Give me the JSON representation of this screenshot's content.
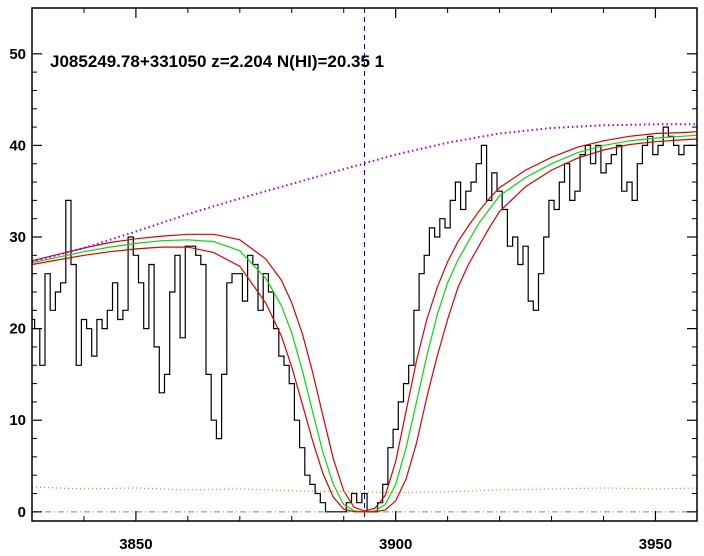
{
  "chart_data": {
    "type": "line",
    "title": "J085249.78+331050 z=2.204 N(HI)=20.35 1",
    "xlabel": "",
    "ylabel": "",
    "xlim": [
      3830,
      3958
    ],
    "ylim": [
      -1,
      55
    ],
    "x_ticks": [
      3850,
      3900,
      3950
    ],
    "y_ticks": [
      0,
      10,
      20,
      30,
      40,
      50
    ],
    "grid": false,
    "absorber_center": 3894,
    "colors": {
      "flux": "#000000",
      "model": "#00dd00",
      "model_bounds": "#dd0000",
      "continuum": "#9900ff",
      "error": "#ff7700",
      "center_line": "#0000cc",
      "zero_line": "#888888"
    },
    "series": [
      {
        "kind": "flux_histogram",
        "x": [
          3830,
          3831,
          3832,
          3833,
          3834,
          3835,
          3836,
          3837,
          3838,
          3839,
          3840,
          3841,
          3842,
          3843,
          3844,
          3845,
          3846,
          3847,
          3848,
          3849,
          3850,
          3851,
          3852,
          3853,
          3854,
          3855,
          3856,
          3857,
          3858,
          3859,
          3860,
          3861,
          3862,
          3863,
          3864,
          3865,
          3866,
          3867,
          3868,
          3869,
          3870,
          3871,
          3872,
          3873,
          3874,
          3875,
          3876,
          3877,
          3878,
          3879,
          3880,
          3881,
          3882,
          3883,
          3884,
          3885,
          3886,
          3887,
          3888,
          3889,
          3890,
          3891,
          3892,
          3893,
          3894,
          3895,
          3896,
          3897,
          3898,
          3899,
          3900,
          3901,
          3902,
          3903,
          3904,
          3905,
          3906,
          3907,
          3908,
          3909,
          3910,
          3911,
          3912,
          3913,
          3914,
          3915,
          3916,
          3917,
          3918,
          3919,
          3920,
          3921,
          3922,
          3923,
          3924,
          3925,
          3926,
          3927,
          3928,
          3929,
          3930,
          3931,
          3932,
          3933,
          3934,
          3935,
          3936,
          3937,
          3938,
          3939,
          3940,
          3941,
          3942,
          3943,
          3944,
          3945,
          3946,
          3947,
          3948,
          3949,
          3950,
          3951,
          3952,
          3953,
          3954,
          3955,
          3956,
          3957
        ],
        "y": [
          21,
          20,
          16,
          26,
          22,
          24,
          25,
          34,
          27,
          16,
          21,
          20,
          17,
          21,
          20,
          22,
          25,
          21,
          22,
          30,
          28,
          25,
          20,
          27,
          18,
          13,
          15,
          24,
          28,
          19,
          29,
          29,
          28,
          27,
          15,
          10,
          8,
          15,
          25,
          26,
          26,
          23,
          28,
          27,
          22,
          26,
          24,
          20,
          17,
          16,
          14,
          10,
          7,
          4,
          3,
          2,
          1,
          0,
          0,
          0,
          0,
          1,
          2,
          1,
          2,
          0,
          0,
          1,
          3,
          7,
          9,
          12,
          14,
          16,
          22,
          26,
          28,
          31,
          30,
          32,
          31,
          34,
          36,
          33,
          35,
          36,
          38,
          40,
          34,
          37,
          35,
          33,
          29,
          30,
          27,
          29,
          23,
          22,
          26,
          30,
          34,
          33,
          36,
          38,
          34,
          35,
          39,
          40,
          38,
          40,
          37,
          38,
          39,
          40,
          35,
          36,
          34,
          38,
          40,
          41,
          39,
          40,
          42,
          41,
          40,
          39,
          40,
          40
        ]
      },
      {
        "kind": "model",
        "name": "",
        "x": [
          3830,
          3835,
          3840,
          3845,
          3850,
          3855,
          3860,
          3865,
          3870,
          3875,
          3878,
          3880,
          3882,
          3884,
          3886,
          3888,
          3890,
          3892,
          3894,
          3896,
          3898,
          3900,
          3902,
          3904,
          3906,
          3908,
          3910,
          3912,
          3914,
          3916,
          3918,
          3920,
          3925,
          3930,
          3935,
          3940,
          3945,
          3950,
          3955,
          3958
        ],
        "y": [
          27.2,
          27.8,
          28.4,
          28.9,
          29.3,
          29.6,
          29.7,
          29.5,
          28.5,
          25.5,
          22.5,
          19.5,
          15.5,
          11,
          6.5,
          3,
          0.8,
          0.1,
          0,
          0.1,
          0.8,
          3,
          7,
          12,
          17,
          21.5,
          25,
          27.5,
          29.5,
          31.5,
          33,
          34.5,
          36.5,
          38,
          39.2,
          40,
          40.5,
          40.8,
          41,
          41.1
        ]
      },
      {
        "kind": "model_upper",
        "name": "",
        "x": [
          3830,
          3835,
          3840,
          3845,
          3850,
          3855,
          3860,
          3865,
          3870,
          3875,
          3878,
          3880,
          3882,
          3884,
          3886,
          3888,
          3890,
          3892,
          3894,
          3896,
          3898,
          3900,
          3902,
          3904,
          3906,
          3908,
          3910,
          3912,
          3914,
          3916,
          3918,
          3920,
          3925,
          3930,
          3935,
          3940,
          3945,
          3950,
          3955,
          3958
        ],
        "y": [
          27.4,
          28.1,
          28.8,
          29.4,
          29.8,
          30.1,
          30.3,
          30.3,
          29.7,
          27.6,
          25.3,
          22.8,
          19.5,
          15.3,
          10.5,
          5.8,
          2.3,
          0.5,
          0.1,
          0.4,
          1.8,
          5.5,
          11,
          16.5,
          21,
          24.5,
          27.3,
          29.5,
          31.2,
          32.8,
          34.2,
          35.4,
          37.3,
          38.7,
          39.8,
          40.5,
          41,
          41.3,
          41.4,
          41.5
        ]
      },
      {
        "kind": "model_lower",
        "name": "",
        "x": [
          3830,
          3835,
          3840,
          3845,
          3850,
          3855,
          3860,
          3865,
          3870,
          3875,
          3878,
          3880,
          3882,
          3884,
          3886,
          3888,
          3890,
          3892,
          3894,
          3896,
          3898,
          3900,
          3902,
          3904,
          3906,
          3908,
          3910,
          3912,
          3914,
          3916,
          3918,
          3920,
          3925,
          3930,
          3935,
          3940,
          3945,
          3950,
          3955,
          3958
        ],
        "y": [
          27,
          27.5,
          28,
          28.4,
          28.7,
          28.9,
          28.9,
          28.3,
          26.8,
          22.8,
          19.2,
          15.8,
          11.8,
          7.8,
          4.2,
          1.6,
          0.3,
          0,
          0,
          0,
          0.2,
          1.2,
          3.6,
          7.5,
          12.5,
          17,
          21,
          24.5,
          27,
          29,
          31,
          32.8,
          35.5,
          37.3,
          38.6,
          39.5,
          40.1,
          40.4,
          40.6,
          40.7
        ]
      },
      {
        "kind": "continuum",
        "name": "",
        "x": [
          3830,
          3840,
          3850,
          3860,
          3870,
          3880,
          3890,
          3900,
          3910,
          3920,
          3930,
          3940,
          3950,
          3958
        ],
        "y": [
          27.3,
          28.8,
          30.6,
          32.5,
          34.2,
          35.8,
          37.4,
          39,
          40.3,
          41.3,
          41.9,
          42.2,
          42.3,
          42.3
        ]
      },
      {
        "kind": "error",
        "name": "",
        "x": [
          3830,
          3840,
          3850,
          3860,
          3870,
          3880,
          3890,
          3900,
          3910,
          3920,
          3930,
          3940,
          3950,
          3958
        ],
        "y": [
          2.7,
          2.5,
          2.6,
          2.4,
          2.5,
          2.3,
          2.2,
          2.1,
          2.2,
          2.4,
          2.5,
          2.6,
          2.5,
          2.6
        ]
      }
    ]
  }
}
